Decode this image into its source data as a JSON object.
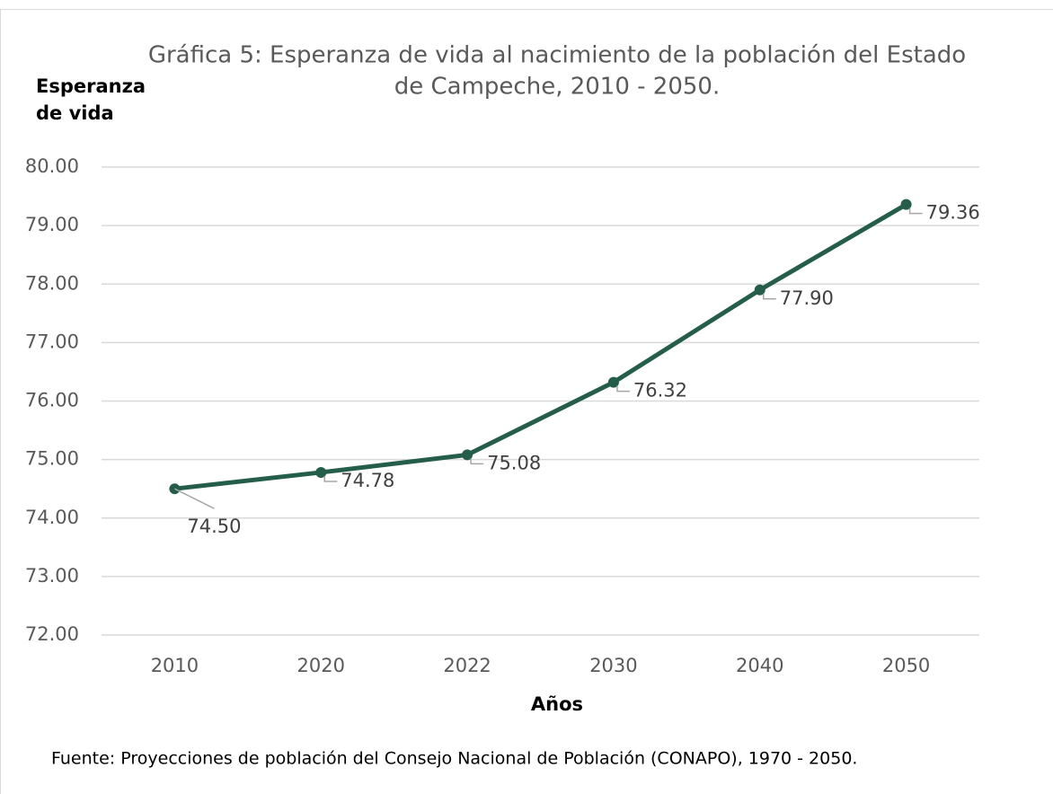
{
  "chart_data": {
    "type": "line",
    "title": [
      "Gráfica 5: Esperanza de vida al nacimiento de la población del Estado",
      "de Campeche, 2010 - 2050."
    ],
    "y_label": [
      "Esperanza",
      "de vida"
    ],
    "x_label": "Años",
    "source": "Fuente: Proyecciones de población del Consejo Nacional de Población (CONAPO),  1970 - 2050.",
    "categories": [
      "2010",
      "2020",
      "2022",
      "2030",
      "2040",
      "2050"
    ],
    "series": [
      {
        "name": "Esperanza de vida",
        "color": "#245e4a",
        "values": [
          74.5,
          74.78,
          75.08,
          76.32,
          77.9,
          79.36
        ],
        "value_labels": [
          "74.50",
          "74.78",
          "75.08",
          "76.32",
          "77.90",
          "79.36"
        ]
      }
    ],
    "ylim": [
      72,
      80
    ],
    "yticks": [
      {
        "value": 72,
        "label": "72.00"
      },
      {
        "value": 73,
        "label": "73.00"
      },
      {
        "value": 74,
        "label": "74.00"
      },
      {
        "value": 75,
        "label": "75.00"
      },
      {
        "value": 76,
        "label": "76.00"
      },
      {
        "value": 77,
        "label": "77.00"
      },
      {
        "value": 78,
        "label": "78.00"
      },
      {
        "value": 79,
        "label": "79.00"
      },
      {
        "value": 80,
        "label": "80.00"
      }
    ],
    "grid": true
  }
}
